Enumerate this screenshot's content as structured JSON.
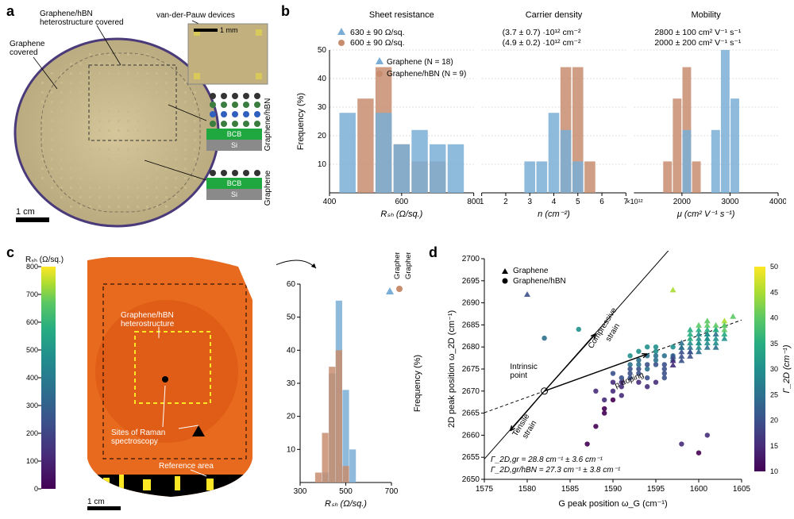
{
  "panel_labels": {
    "a": "a",
    "b": "b",
    "c": "c",
    "d": "d"
  },
  "colors": {
    "graphene": "#7aaed6",
    "graphene_hbn": "#c88d6e",
    "bcb": "#1ea83f",
    "si": "#8a8a8a",
    "heatmap_bg": "#e86a1e",
    "viridis": [
      "#440154",
      "#472c7a",
      "#3b518b",
      "#2c718e",
      "#21908d",
      "#27ad81",
      "#5cc863",
      "#aadc32",
      "#fde725"
    ]
  },
  "a": {
    "label_top": "Graphene/hBN\nheterostructure covered",
    "label_vdP": "van-der-Pauw devices",
    "label_gr": "Graphene\ncovered",
    "inset_scale": "1 mm",
    "main_scale": "1 cm",
    "stack_side_top": "Graphene/hBN",
    "stack_side_bot": "Graphene",
    "stack_bcb": "BCB",
    "stack_si": "Si"
  },
  "b": {
    "titles": [
      "Sheet resistance",
      "Carrier density",
      "Mobility"
    ],
    "stats_g": [
      "630 ± 90 Ω/sq.",
      "(3.7 ± 0.7) ·10¹² cm⁻²",
      "2800 ± 100 cm² V⁻¹ s⁻¹"
    ],
    "stats_h": [
      "600 ± 90 Ω/sq.",
      "(4.9 ± 0.2) ·10¹² cm⁻²",
      "2000 ± 200 cm² V⁻¹ s⁻¹"
    ],
    "legend_g": "Graphene (N = 18)",
    "legend_h": "Graphene/hBN (N = 9)",
    "ylabel": "Frequency (%)",
    "ylim": [
      0,
      50
    ],
    "ytick": 10,
    "grid_color": "#bbbbbb",
    "charts": [
      {
        "xlabel": "Rₛₕ (Ω/sq.)",
        "xlim": [
          400,
          800
        ],
        "xticks": [
          400,
          600,
          800
        ],
        "bins": [
          450,
          500,
          550,
          600,
          650,
          700,
          750
        ],
        "g": [
          28,
          0,
          28,
          17,
          22,
          17,
          17
        ],
        "h": [
          0,
          33,
          44,
          17,
          11,
          11,
          0
        ]
      },
      {
        "xlabel": "n (cm⁻²)",
        "xlim": [
          1,
          7
        ],
        "xticks": [
          1,
          2,
          3,
          4,
          5,
          6,
          7
        ],
        "xnote": "×10¹²",
        "bins": [
          2.5,
          3,
          3.5,
          4,
          4.5,
          5,
          5.5
        ],
        "g": [
          0,
          11,
          11,
          28,
          22,
          11,
          0
        ],
        "h": [
          0,
          0,
          0,
          0,
          44,
          44,
          11
        ]
      },
      {
        "xlabel": "μ (cm² V⁻¹ s⁻¹)",
        "xlim": [
          1000,
          4000
        ],
        "xticks": [
          2000,
          3000,
          4000
        ],
        "bins": [
          1700,
          1900,
          2100,
          2300,
          2700,
          2900,
          3100
        ],
        "g": [
          0,
          0,
          22,
          0,
          22,
          50,
          33
        ],
        "h": [
          11,
          33,
          44,
          11,
          0,
          0,
          0
        ]
      }
    ]
  },
  "c": {
    "cb_label": "Rₛₕ (Ω/sq.)",
    "cb_lim": [
      0,
      800
    ],
    "cb_tick": 100,
    "ann_hetero": "Graphene/hBN\nheterostructure",
    "ann_raman": "Sites of Raman\nspectroscopy",
    "ann_ref": "Reference area",
    "scale": "1 cm",
    "side_top": "Graphene/hBN",
    "side_left": "Graphene",
    "hist": {
      "xlabel": "Rₛₕ (Ω/sq.)",
      "ylabel": "Frequency (%)",
      "xlim": [
        300,
        700
      ],
      "xticks": [
        300,
        500,
        700
      ],
      "ylim": [
        0,
        60
      ],
      "ytick": 10,
      "bins": [
        380,
        410,
        440,
        470,
        500,
        530
      ],
      "outer": [
        0,
        3,
        33,
        55,
        28,
        10
      ],
      "inner": [
        3,
        15,
        35,
        40,
        5,
        0
      ]
    }
  },
  "d": {
    "xlabel": "G peak position ω_G (cm⁻¹)",
    "ylabel": "2D peak position ω_2D (cm⁻¹)",
    "xlim": [
      1575,
      1605
    ],
    "xtick": 5,
    "ylim": [
      2650,
      2700
    ],
    "ytick": 5,
    "cb_label": "Γ_2D (cm⁻¹)",
    "cb_lim": [
      10,
      50
    ],
    "cb_tick": 5,
    "legend_g": "Graphene",
    "legend_h": "Graphene/hBN",
    "ann_intrinsic": "Intrinsic\npoint",
    "ann_comp": "Compressive\nstrain",
    "ann_tens": "Tensile\nstrain",
    "ann_pdope": "p doping",
    "gamma_g": "Γ_2D,gr = 28.8 cm⁻¹ ± 3.6 cm⁻¹",
    "gamma_h": "Γ_2D,gr/hBN = 27.3 cm⁻¹ ± 3.8 cm⁻¹",
    "intrinsic_point": [
      1582,
      2670
    ],
    "strain_slope": 2.2,
    "doping_slope": 0.7,
    "points_g": [
      [
        1600,
        2681,
        35
      ],
      [
        1601,
        2683,
        30
      ],
      [
        1599,
        2679,
        25
      ],
      [
        1602,
        2684,
        38
      ],
      [
        1598,
        2680,
        28
      ],
      [
        1601,
        2682,
        32
      ],
      [
        1603,
        2685,
        40
      ],
      [
        1597,
        2678,
        22
      ],
      [
        1600,
        2680,
        30
      ],
      [
        1599,
        2682,
        35
      ],
      [
        1602,
        2683,
        28
      ],
      [
        1598,
        2677,
        20
      ],
      [
        1601,
        2685,
        42
      ],
      [
        1600,
        2684,
        36
      ],
      [
        1603,
        2686,
        45
      ],
      [
        1597,
        2676,
        18
      ],
      [
        1602,
        2680,
        26
      ],
      [
        1599,
        2681,
        30
      ],
      [
        1601,
        2684,
        38
      ],
      [
        1600,
        2683,
        34
      ],
      [
        1598,
        2679,
        24
      ],
      [
        1603,
        2684,
        40
      ],
      [
        1599,
        2683,
        36
      ],
      [
        1601,
        2681,
        30
      ],
      [
        1602,
        2682,
        32
      ],
      [
        1600,
        2679,
        26
      ],
      [
        1597,
        2693,
        45
      ],
      [
        1604,
        2687,
        44
      ],
      [
        1599,
        2684,
        38
      ],
      [
        1601,
        2686,
        44
      ],
      [
        1580,
        2692,
        22
      ],
      [
        1598,
        2681,
        28
      ],
      [
        1602,
        2685,
        40
      ],
      [
        1600,
        2682,
        32
      ],
      [
        1601,
        2680,
        26
      ],
      [
        1603,
        2683,
        36
      ],
      [
        1599,
        2680,
        28
      ],
      [
        1602,
        2681,
        30
      ],
      [
        1600,
        2685,
        42
      ],
      [
        1598,
        2678,
        22
      ],
      [
        1601,
        2683,
        34
      ],
      [
        1603,
        2682,
        32
      ],
      [
        1599,
        2678,
        20
      ],
      [
        1602,
        2684,
        38
      ],
      [
        1600,
        2681,
        30
      ],
      [
        1597,
        2677,
        18
      ],
      [
        1601,
        2682,
        32
      ],
      [
        1598,
        2680,
        26
      ],
      [
        1603,
        2685,
        42
      ],
      [
        1599,
        2679,
        24
      ]
    ],
    "points_h": [
      [
        1594,
        2675,
        25
      ],
      [
        1593,
        2677,
        28
      ],
      [
        1595,
        2676,
        22
      ],
      [
        1592,
        2678,
        30
      ],
      [
        1596,
        2674,
        20
      ],
      [
        1591,
        2672,
        18
      ],
      [
        1594,
        2673,
        24
      ],
      [
        1593,
        2679,
        32
      ],
      [
        1595,
        2677,
        26
      ],
      [
        1590,
        2670,
        16
      ],
      [
        1592,
        2674,
        22
      ],
      [
        1596,
        2678,
        28
      ],
      [
        1594,
        2676,
        24
      ],
      [
        1591,
        2673,
        20
      ],
      [
        1593,
        2672,
        18
      ],
      [
        1595,
        2679,
        30
      ],
      [
        1590,
        2668,
        14
      ],
      [
        1592,
        2676,
        26
      ],
      [
        1594,
        2678,
        28
      ],
      [
        1596,
        2675,
        22
      ],
      [
        1588,
        2662,
        14
      ],
      [
        1597,
        2680,
        30
      ],
      [
        1593,
        2675,
        24
      ],
      [
        1595,
        2672,
        18
      ],
      [
        1591,
        2669,
        16
      ],
      [
        1589,
        2665,
        14
      ],
      [
        1594,
        2680,
        32
      ],
      [
        1592,
        2673,
        20
      ],
      [
        1596,
        2676,
        24
      ],
      [
        1590,
        2672,
        18
      ],
      [
        1587,
        2658,
        12
      ],
      [
        1593,
        2674,
        22
      ],
      [
        1595,
        2678,
        28
      ],
      [
        1589,
        2666,
        14
      ],
      [
        1597,
        2678,
        28
      ],
      [
        1591,
        2671,
        18
      ],
      [
        1601,
        2660,
        16
      ],
      [
        1600,
        2656,
        14
      ],
      [
        1598,
        2658,
        15
      ],
      [
        1586,
        2684,
        30
      ],
      [
        1582,
        2682,
        25
      ],
      [
        1588,
        2670,
        18
      ],
      [
        1594,
        2671,
        18
      ],
      [
        1596,
        2673,
        20
      ],
      [
        1592,
        2675,
        24
      ],
      [
        1590,
        2674,
        22
      ],
      [
        1595,
        2680,
        32
      ],
      [
        1593,
        2676,
        26
      ],
      [
        1597,
        2677,
        26
      ],
      [
        1589,
        2668,
        16
      ]
    ]
  }
}
